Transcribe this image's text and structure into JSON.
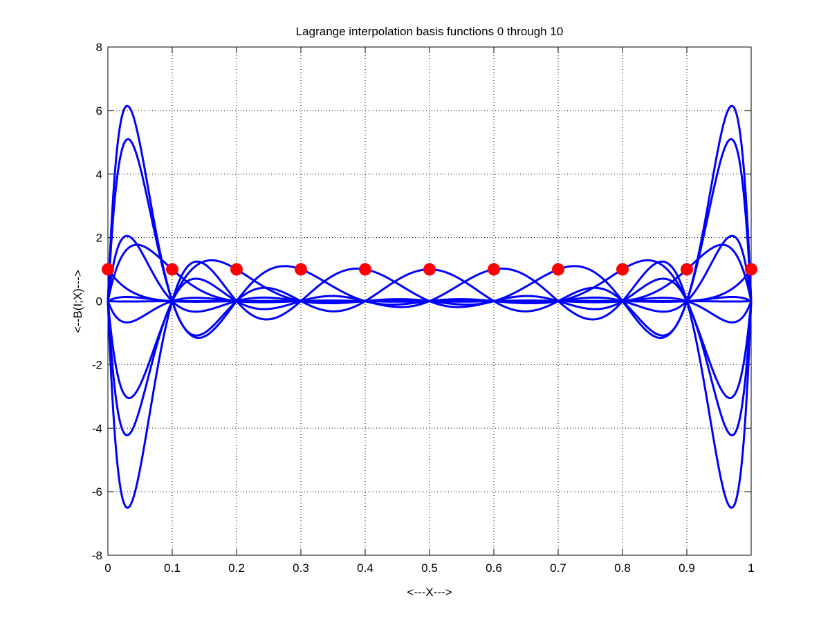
{
  "chart_data": {
    "type": "line",
    "title": "Lagrange interpolation basis functions 0 through 10",
    "xlabel": "<---X--->",
    "ylabel": "<--B(I;X)--->",
    "xlim": [
      0,
      1
    ],
    "ylim": [
      -8,
      8
    ],
    "grid": true,
    "xticks": [
      0,
      0.1,
      0.2,
      0.3,
      0.4,
      0.5,
      0.6,
      0.7,
      0.8,
      0.9,
      1
    ],
    "xtick_labels": [
      "0",
      "0.1",
      "0.2",
      "0.3",
      "0.4",
      "0.5",
      "0.6",
      "0.7",
      "0.8",
      "0.9",
      "1"
    ],
    "yticks": [
      -8,
      -6,
      -4,
      -2,
      0,
      2,
      4,
      6,
      8
    ],
    "ytick_labels": [
      "-8",
      "-6",
      "-4",
      "-2",
      "0",
      "2",
      "4",
      "6",
      "8"
    ],
    "line_color": "#0000ff",
    "marker_color": "#ff0000",
    "nodes_x": [
      0,
      0.1,
      0.2,
      0.3,
      0.4,
      0.5,
      0.6,
      0.7,
      0.8,
      0.9,
      1
    ],
    "nodes_y": [
      1,
      1,
      1,
      1,
      1,
      1,
      1,
      1,
      1,
      1,
      1
    ],
    "series_count": 11
  }
}
